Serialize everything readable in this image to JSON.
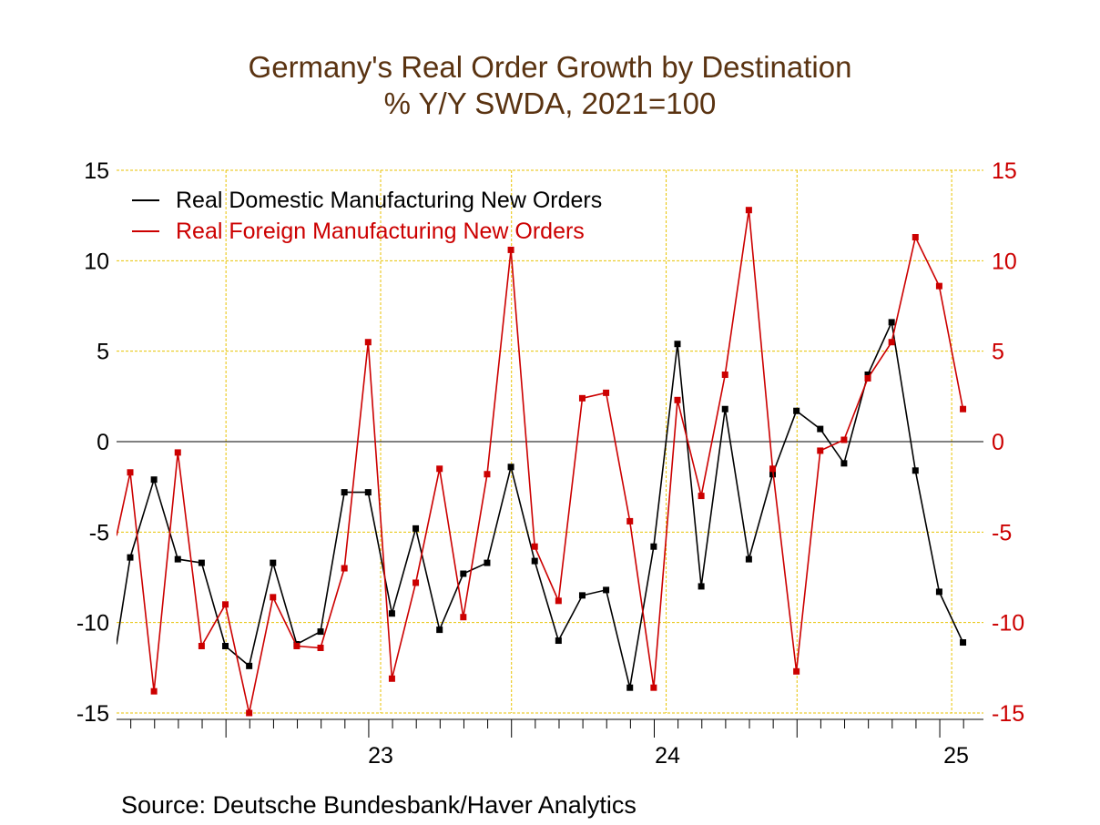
{
  "chart_data": {
    "type": "line",
    "title": "Germany's Real Order Growth by Destination",
    "subtitle": "% Y/Y   SWDA, 2021=100",
    "source": "Source:  Deutsche Bundesbank/Haver Analytics",
    "x_tick_labels": [
      "23",
      "24",
      "25"
    ],
    "y_left": {
      "ylim": [
        -15,
        15
      ],
      "ticks": [
        "15",
        "10",
        "5",
        "0",
        "-5",
        "-10",
        "-15"
      ]
    },
    "y_right": {
      "ylim": [
        -15,
        15
      ],
      "ticks": [
        "15",
        "10",
        "5",
        "0",
        "-5",
        "-10",
        "-15"
      ]
    },
    "grid": true,
    "legend_position": "top-left",
    "colors": {
      "domestic": "#000000",
      "foreign": "#cc0000",
      "grid": "#e8c200",
      "title": "#5a3311"
    },
    "x": [
      "2022-01",
      "2022-02",
      "2022-03",
      "2022-04",
      "2022-05",
      "2022-06",
      "2022-07",
      "2022-08",
      "2022-09",
      "2022-10",
      "2022-11",
      "2022-12",
      "2023-01",
      "2023-02",
      "2023-03",
      "2023-04",
      "2023-05",
      "2023-06",
      "2023-07",
      "2023-08",
      "2023-09",
      "2023-10",
      "2023-11",
      "2023-12",
      "2024-01",
      "2024-02",
      "2024-03",
      "2024-04",
      "2024-05",
      "2024-06",
      "2024-07",
      "2024-08",
      "2024-09",
      "2024-10",
      "2024-11",
      "2024-12",
      "2025-01"
    ],
    "series": [
      {
        "name": "Real Domestic Manufacturing New Orders",
        "key": "domestic",
        "values": [
          -6.4,
          -2.1,
          -6.5,
          -6.7,
          -11.3,
          -12.4,
          -6.7,
          -11.2,
          -10.5,
          -2.8,
          -2.8,
          -9.5,
          -4.8,
          -10.4,
          -7.3,
          -6.7,
          -1.4,
          -6.6,
          -11.0,
          -8.5,
          -8.2,
          -13.6,
          -5.8,
          5.4,
          -8.0,
          1.8,
          -6.5,
          -1.8,
          1.7,
          0.7,
          -1.2,
          3.7,
          6.6,
          -1.6,
          -8.3,
          -11.1,
          -11.1
        ]
      },
      {
        "name": "Real Foreign Manufacturing New Orders",
        "key": "foreign",
        "values": [
          -1.7,
          -13.8,
          -0.6,
          -11.3,
          -9.0,
          -15.0,
          -8.6,
          -11.3,
          -11.4,
          -7.0,
          5.5,
          -13.1,
          -7.8,
          -1.5,
          -9.7,
          -1.8,
          10.6,
          -5.8,
          -8.8,
          2.4,
          2.7,
          -4.4,
          -13.6,
          2.3,
          -3.0,
          3.7,
          12.8,
          -1.5,
          -12.7,
          -0.5,
          0.1,
          3.5,
          5.5,
          11.3,
          8.6,
          1.8,
          1.8
        ]
      }
    ]
  }
}
